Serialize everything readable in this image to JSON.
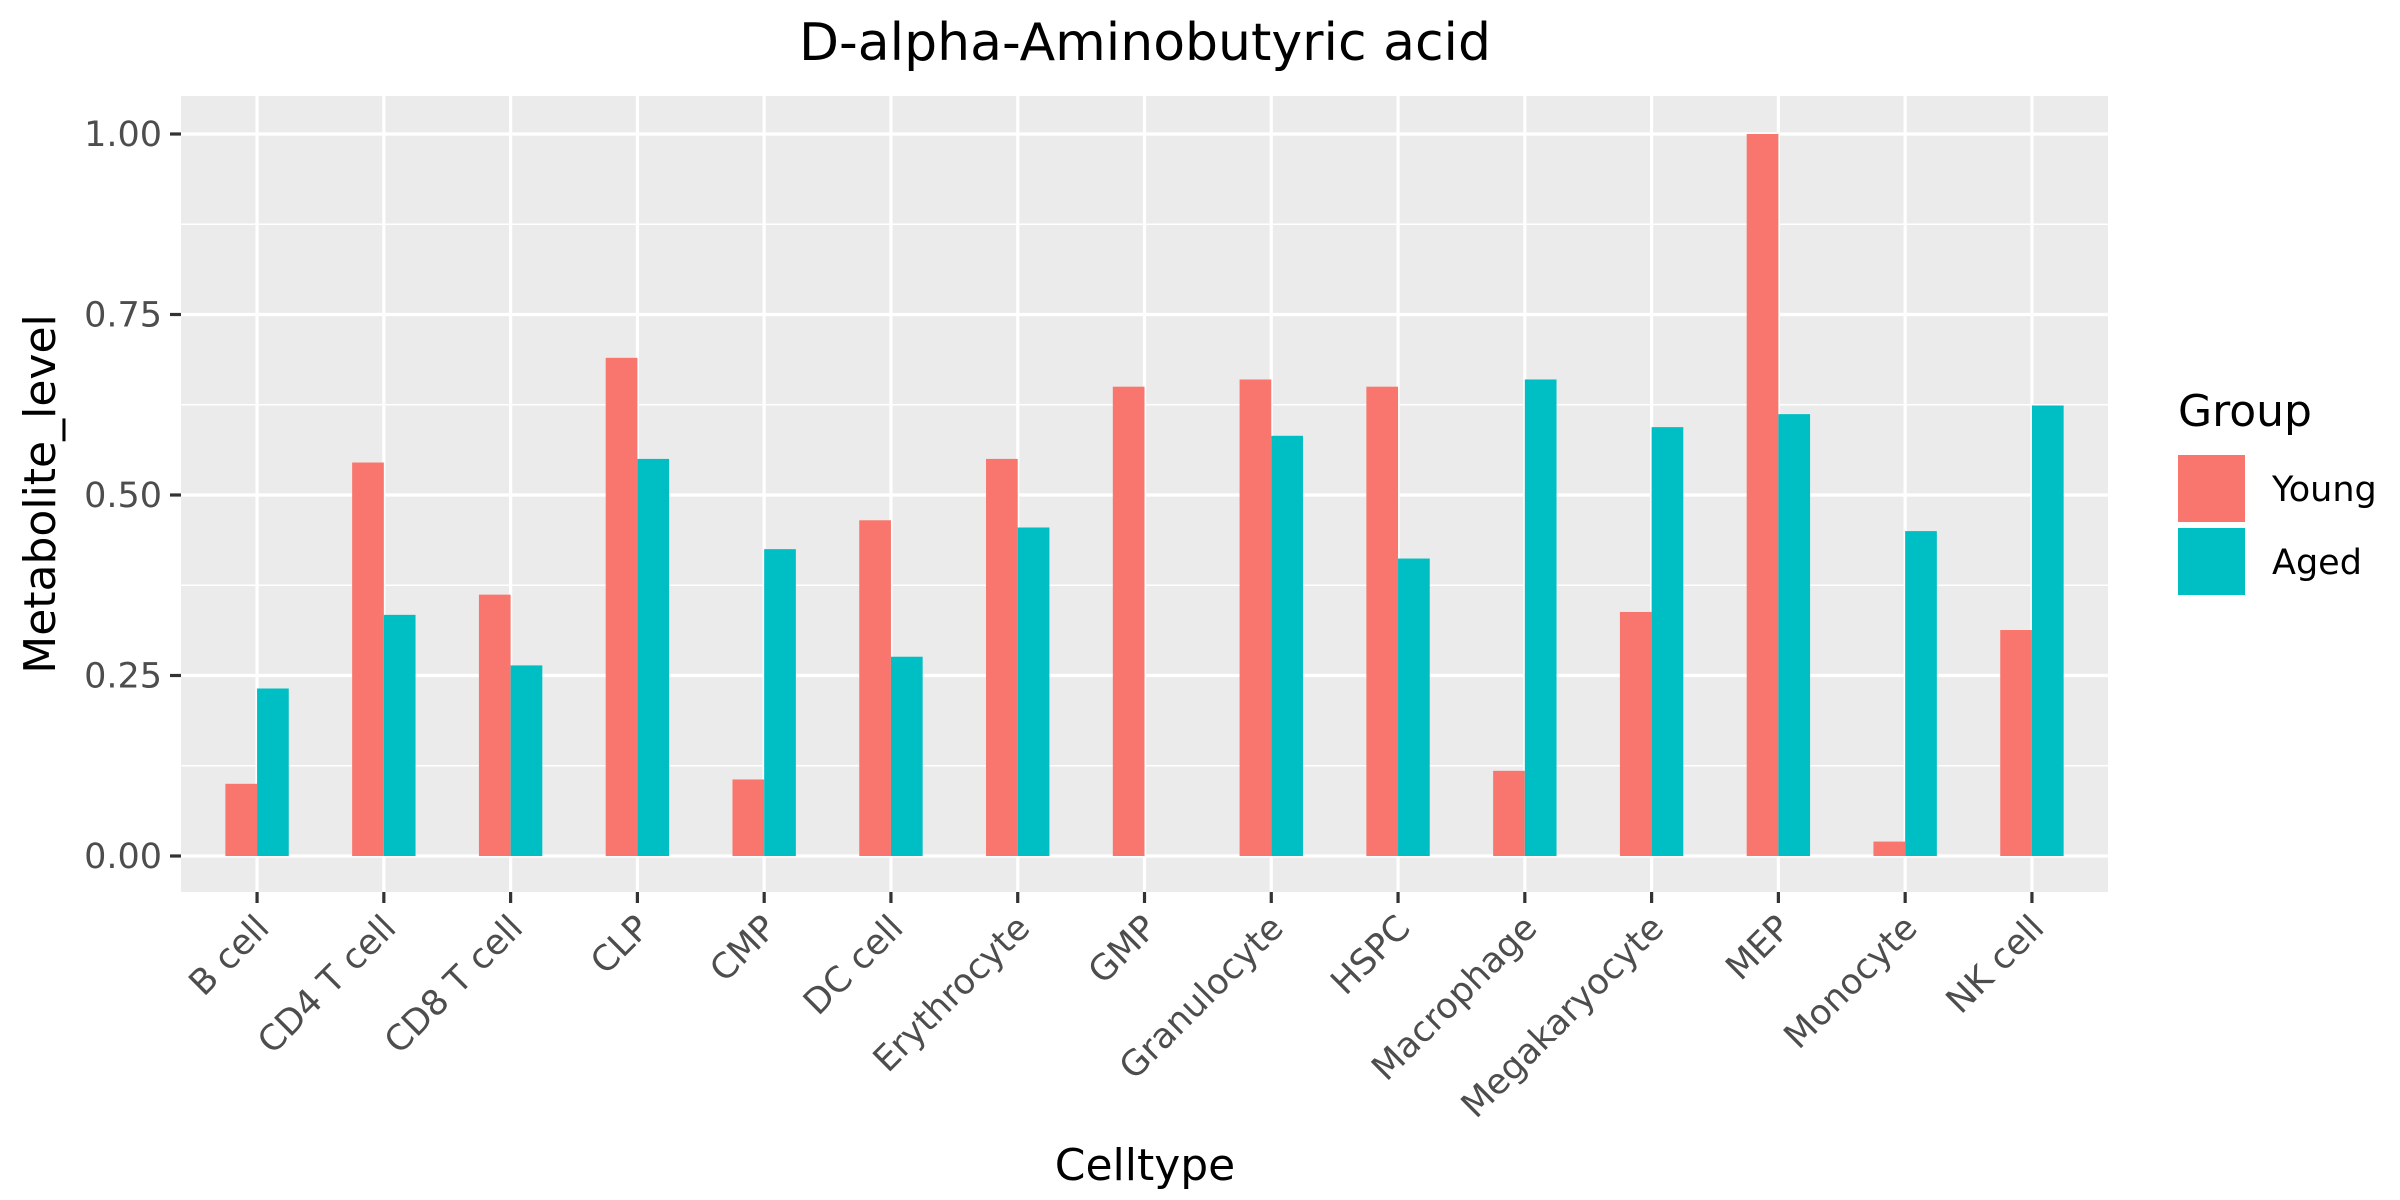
{
  "chart_data": {
    "type": "bar",
    "title": "D-alpha-Aminobutyric acid",
    "xlabel": "Celltype",
    "ylabel": "Metabolite_level",
    "ylim": [
      -0.05,
      1.05
    ],
    "yticks": [
      0.0,
      0.25,
      0.5,
      0.75,
      1.0
    ],
    "ytick_labels": [
      "0.00",
      "0.25",
      "0.50",
      "0.75",
      "1.00"
    ],
    "grid": true,
    "legend": {
      "title": "Group",
      "position": "right"
    },
    "categories": [
      "B cell",
      "CD4 T cell",
      "CD8 T cell",
      "CLP",
      "CMP",
      "DC cell",
      "Erythrocyte",
      "GMP",
      "Granulocyte",
      "HSPC",
      "Macrophage",
      "Megakaryocyte",
      "MEP",
      "Monocyte",
      "NK cell"
    ],
    "series": [
      {
        "name": "Young",
        "color": "#F8766D",
        "values": [
          0.1,
          0.545,
          0.362,
          0.69,
          0.106,
          0.465,
          0.55,
          0.65,
          0.66,
          0.65,
          0.118,
          0.338,
          1.0,
          0.02,
          0.313
        ]
      },
      {
        "name": "Aged",
        "color": "#00BFC4",
        "values": [
          0.232,
          0.334,
          0.264,
          0.55,
          0.425,
          0.276,
          0.455,
          null,
          0.582,
          0.412,
          0.66,
          0.594,
          0.612,
          0.45,
          0.624
        ]
      }
    ]
  }
}
